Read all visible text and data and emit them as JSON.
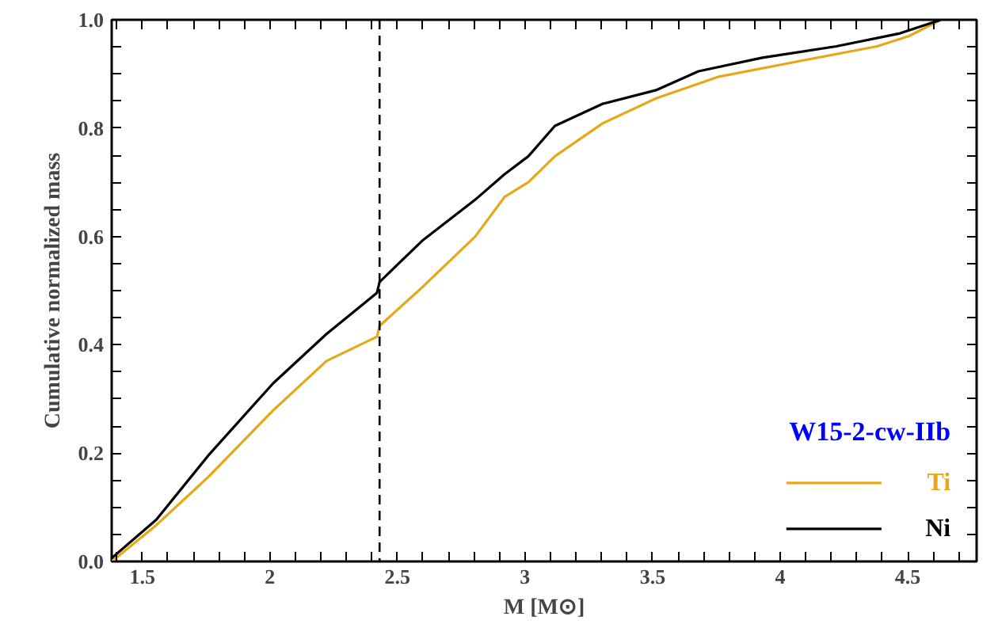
{
  "chart_data": {
    "type": "line",
    "xlabel": "M [M⊙]",
    "ylabel": "Cumulative normalized mass",
    "legend_title": "W15-2-cw-IIb",
    "legend": "bottom right",
    "xlim": [
      1.38,
      4.77
    ],
    "ylim": [
      0,
      1
    ],
    "xticks": [
      {
        "value": 1.4,
        "label": null
      },
      1.5,
      {
        "value": 1.6,
        "label": null
      },
      {
        "value": 1.7,
        "label": null
      },
      {
        "value": 1.8,
        "label": null
      },
      {
        "value": 1.9,
        "label": null
      },
      2,
      {
        "value": 2.1,
        "label": null
      },
      {
        "value": 2.2,
        "label": null
      },
      {
        "value": 2.3,
        "label": null
      },
      {
        "value": 2.4,
        "label": null
      },
      2.5,
      {
        "value": 2.6,
        "label": null
      },
      {
        "value": 2.7,
        "label": null
      },
      {
        "value": 2.8,
        "label": null
      },
      {
        "value": 2.9,
        "label": null
      },
      3,
      {
        "value": 3.1,
        "label": null
      },
      {
        "value": 3.2,
        "label": null
      },
      {
        "value": 3.3,
        "label": null
      },
      {
        "value": 3.4,
        "label": null
      },
      3.5,
      {
        "value": 3.6,
        "label": null
      },
      {
        "value": 3.7,
        "label": null
      },
      {
        "value": 3.8,
        "label": null
      },
      {
        "value": 3.9,
        "label": null
      },
      4,
      {
        "value": 4.1,
        "label": null
      },
      {
        "value": 4.2,
        "label": null
      },
      {
        "value": 4.3,
        "label": null
      },
      {
        "value": 4.4,
        "label": null
      },
      4.5,
      {
        "value": 4.6,
        "label": null
      },
      {
        "value": 4.7,
        "label": null
      }
    ],
    "yticks": [
      {
        "value": 0,
        "label": "0.0"
      },
      {
        "value": 0.05,
        "label": null
      },
      {
        "value": 0.1,
        "label": null
      },
      {
        "value": 0.15,
        "label": null
      },
      0.2,
      {
        "value": 0.25,
        "label": null
      },
      {
        "value": 0.3,
        "label": null
      },
      {
        "value": 0.35,
        "label": null
      },
      0.4,
      {
        "value": 0.45,
        "label": null
      },
      {
        "value": 0.5,
        "label": null
      },
      {
        "value": 0.55,
        "label": null
      },
      0.6,
      {
        "value": 0.65,
        "label": null
      },
      {
        "value": 0.7,
        "label": null
      },
      {
        "value": 0.75,
        "label": null
      },
      0.8,
      {
        "value": 0.85,
        "label": null
      },
      {
        "value": 0.9,
        "label": null
      },
      {
        "value": 0.95,
        "label": null
      },
      {
        "value": 1,
        "label": "1.0"
      }
    ],
    "ref_lines": [
      {
        "axis": "x",
        "value": 2.43,
        "color": "#000000",
        "line_style": "dashed"
      }
    ],
    "series": [
      {
        "name": "Ti",
        "color": "#e6a817",
        "x": [
          1.38,
          1.555,
          1.763,
          2.013,
          2.222,
          2.42,
          2.43,
          2.597,
          2.805,
          2.92,
          3.013,
          3.117,
          3.305,
          3.513,
          3.76,
          4.09,
          4.38,
          4.505,
          4.63
        ],
        "values": [
          0.0,
          0.067,
          0.158,
          0.279,
          0.37,
          0.415,
          0.435,
          0.506,
          0.6,
          0.673,
          0.7,
          0.748,
          0.809,
          0.855,
          0.895,
          0.925,
          0.951,
          0.97,
          1.0
        ]
      },
      {
        "name": "Ni",
        "color": "#000000",
        "x": [
          1.38,
          1.555,
          1.763,
          2.013,
          2.222,
          2.42,
          2.43,
          2.597,
          2.805,
          2.92,
          3.013,
          3.117,
          3.305,
          3.513,
          3.68,
          3.93,
          4.22,
          4.47,
          4.63
        ],
        "values": [
          0.006,
          0.077,
          0.198,
          0.329,
          0.42,
          0.496,
          0.516,
          0.592,
          0.668,
          0.715,
          0.748,
          0.804,
          0.845,
          0.87,
          0.905,
          0.93,
          0.951,
          0.975,
          1.0
        ]
      }
    ]
  }
}
